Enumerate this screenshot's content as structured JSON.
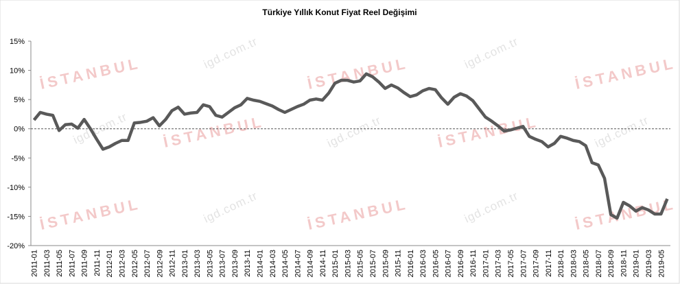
{
  "chart_data": {
    "type": "line",
    "title": "Türkiye Yıllık  Konut Fiyat Reel Değişimi",
    "categories": [
      "2011-01",
      null,
      "2011-03",
      null,
      "2011-05",
      null,
      "2011-07",
      null,
      "2011-09",
      null,
      "2011-11",
      null,
      "2012-01",
      null,
      "2012-03",
      null,
      "2012-05",
      null,
      "2012-07",
      null,
      "2012-09",
      null,
      "2012-11",
      null,
      "2013-01",
      null,
      "2013-03",
      null,
      "2013-05",
      null,
      "2013-07",
      null,
      "2013-09",
      null,
      "2013-11",
      null,
      "2014-01",
      null,
      "2014-03",
      null,
      "2014-05",
      null,
      "2014-07",
      null,
      "2014-09",
      null,
      "2014-11",
      null,
      "2015-01",
      null,
      "2015-03",
      null,
      "2015-05",
      null,
      "2015-07",
      null,
      "2015-09",
      null,
      "2015-11",
      null,
      "2016-01",
      null,
      "2016-03",
      null,
      "2016-05",
      null,
      "2016-07",
      null,
      "2016-09",
      null,
      "2016-11",
      null,
      "2017-01",
      null,
      "2017-03",
      null,
      "2017-05",
      null,
      "2017-07",
      null,
      "2017-09",
      null,
      "2017-11",
      null,
      "2018-01",
      null,
      "2018-03",
      null,
      "2018-05",
      null,
      "2018-07",
      null,
      "2018-09",
      null,
      "2018-11",
      null,
      "2019-01",
      null,
      "2019-03",
      null,
      "2019-05",
      null
    ],
    "series": [
      {
        "color": "#595959",
        "values": [
          1.5,
          2.8,
          2.5,
          2.3,
          -0.3,
          0.7,
          0.8,
          0.1,
          1.6,
          0,
          -1.8,
          -3.5,
          -3.1,
          -2.5,
          -2.0,
          -2.0,
          1.0,
          1.1,
          1.3,
          1.9,
          0.5,
          1.6,
          3.1,
          3.7,
          2.5,
          2.7,
          2.8,
          4.1,
          3.8,
          2.3,
          2.0,
          2.8,
          3.6,
          4.1,
          5.2,
          4.9,
          4.7,
          4.3,
          3.9,
          3.3,
          2.8,
          3.3,
          3.8,
          4.2,
          4.9,
          5.1,
          4.9,
          6.1,
          7.8,
          8.3,
          8.3,
          8.0,
          8.2,
          9.4,
          8.9,
          8.0,
          6.9,
          7.5,
          7.0,
          6.2,
          5.5,
          5.8,
          6.5,
          6.9,
          6.7,
          5.3,
          4.2,
          5.4,
          6.0,
          5.6,
          4.8,
          3.4,
          2.0,
          1.3,
          0.5,
          -0.4,
          -0.2,
          0.1,
          0.4,
          -1.3,
          -1.8,
          -2.2,
          -3.1,
          -2.5,
          -1.3,
          -1.6,
          -2.0,
          -2.2,
          -2.9,
          -5.8,
          -6.2,
          -8.5,
          -14.7,
          -15.3,
          -12.6,
          -13.2,
          -14.1,
          -13.5,
          -13.9,
          -14.6,
          -14.6,
          -12.0
        ]
      }
    ],
    "ylim": [
      -20,
      15
    ],
    "yticks": [
      {
        "value": -20,
        "label": "-20%"
      },
      {
        "value": -15,
        "label": "-15%"
      },
      {
        "value": -10,
        "label": "-10%"
      },
      {
        "value": -5,
        "label": "-5%"
      },
      {
        "value": 0,
        "label": "0%"
      },
      {
        "value": 5,
        "label": "5%"
      },
      {
        "value": 10,
        "label": "10%"
      },
      {
        "value": 15,
        "label": "15%"
      }
    ],
    "zero_line": true
  },
  "watermarks": [
    "İSTANBUL",
    "igd.com.tr"
  ]
}
